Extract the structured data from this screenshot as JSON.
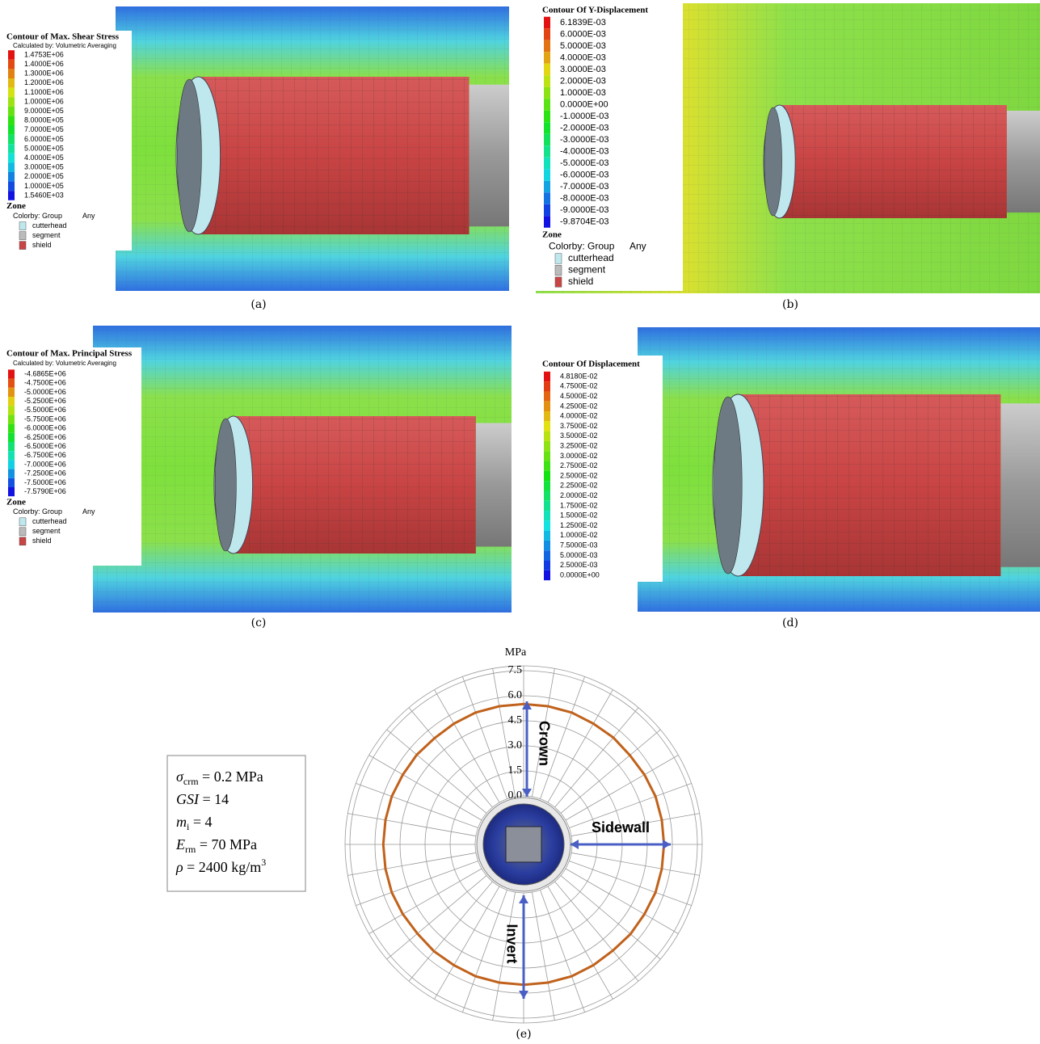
{
  "panels": [
    {
      "caption": "(a)",
      "legend": {
        "title": "Contour of Max. Shear Stress",
        "subtitle": "Calculated by: Volumetric Averaging",
        "levels": [
          "1.4753E+06",
          "1.4000E+06",
          "1.3000E+06",
          "1.2000E+06",
          "1.1000E+06",
          "1.0000E+06",
          "9.0000E+05",
          "8.0000E+05",
          "7.0000E+05",
          "6.0000E+05",
          "5.0000E+05",
          "4.0000E+05",
          "3.0000E+05",
          "2.0000E+05",
          "1.0000E+05",
          "1.5460E+03"
        ],
        "zone": {
          "title": "Zone",
          "colorby": "Colorby: Group",
          "any": "Any",
          "groups": [
            "cutterhead",
            "segment",
            "shield"
          ]
        }
      }
    },
    {
      "caption": "(b)",
      "legend": {
        "title": "Contour Of Y-Displacement",
        "levels": [
          "6.1839E-03",
          "6.0000E-03",
          "5.0000E-03",
          "4.0000E-03",
          "3.0000E-03",
          "2.0000E-03",
          "1.0000E-03",
          "0.0000E+00",
          "-1.0000E-03",
          "-2.0000E-03",
          "-3.0000E-03",
          "-4.0000E-03",
          "-5.0000E-03",
          "-6.0000E-03",
          "-7.0000E-03",
          "-8.0000E-03",
          "-9.0000E-03",
          "-9.8704E-03"
        ],
        "zone": {
          "title": "Zone",
          "colorby": "Colorby: Group",
          "any": "Any",
          "groups": [
            "cutterhead",
            "segment",
            "shield"
          ]
        }
      }
    },
    {
      "caption": "(c)",
      "legend": {
        "title": "Contour of Max. Principal Stress",
        "subtitle": "Calculated by: Volumetric Averaging",
        "levels": [
          "-4.6865E+06",
          "-4.7500E+06",
          "-5.0000E+06",
          "-5.2500E+06",
          "-5.5000E+06",
          "-5.7500E+06",
          "-6.0000E+06",
          "-6.2500E+06",
          "-6.5000E+06",
          "-6.7500E+06",
          "-7.0000E+06",
          "-7.2500E+06",
          "-7.5000E+06",
          "-7.5790E+06"
        ],
        "zone": {
          "title": "Zone",
          "colorby": "Colorby: Group",
          "any": "Any",
          "groups": [
            "cutterhead",
            "segment",
            "shield"
          ]
        }
      }
    },
    {
      "caption": "(d)",
      "legend": {
        "title": "Contour Of Displacement",
        "levels": [
          "4.8180E-02",
          "4.7500E-02",
          "4.5000E-02",
          "4.2500E-02",
          "4.0000E-02",
          "3.7500E-02",
          "3.5000E-02",
          "3.2500E-02",
          "3.0000E-02",
          "2.7500E-02",
          "2.5000E-02",
          "2.2500E-02",
          "2.0000E-02",
          "1.7500E-02",
          "1.5000E-02",
          "1.2500E-02",
          "1.0000E-02",
          "7.5000E-03",
          "5.0000E-03",
          "2.5000E-03",
          "0.0000E+00"
        ]
      }
    }
  ],
  "polar": {
    "caption": "(e)",
    "unit": "MPa",
    "rlim": [
      0,
      7.5
    ],
    "rticks": [
      {
        "value": 0,
        "label": "0.0"
      },
      1.5,
      {
        "value": 3,
        "label": "3.0"
      },
      4.5,
      {
        "value": 6,
        "label": "6.0"
      },
      7.5
    ],
    "ring": {
      "color": "#c0621c",
      "values": [
        5.5,
        5.5,
        5.5,
        5.45,
        5.45,
        5.4,
        5.45,
        5.5,
        5.5,
        5.5,
        5.5,
        5.5,
        5.45,
        5.45,
        5.4,
        5.45,
        5.5,
        5.5,
        5.5,
        5.5,
        5.5,
        5.45,
        5.45,
        5.4,
        5.45,
        5.5,
        5.5,
        5.5,
        5.5,
        5.5,
        5.45,
        5.45,
        5.4,
        5.45,
        5.5,
        5.5
      ]
    },
    "labels": {
      "crown": "Crown",
      "sidewall": "Sidewall",
      "invert": "Invert"
    },
    "parameters": [
      {
        "symbol": "σ",
        "sub": "crm",
        "rest": " =  0.2 MPa"
      },
      {
        "symbol": "GSI",
        "rest": " = 14"
      },
      {
        "symbol": "m",
        "sub": "i",
        "rest": " = 4"
      },
      {
        "symbol": "E",
        "sub": "rm",
        "rest": " = 70 MPa"
      },
      {
        "symbol": "ρ",
        "rest": " = 2400 kg/m",
        "sup": "3"
      }
    ]
  }
}
